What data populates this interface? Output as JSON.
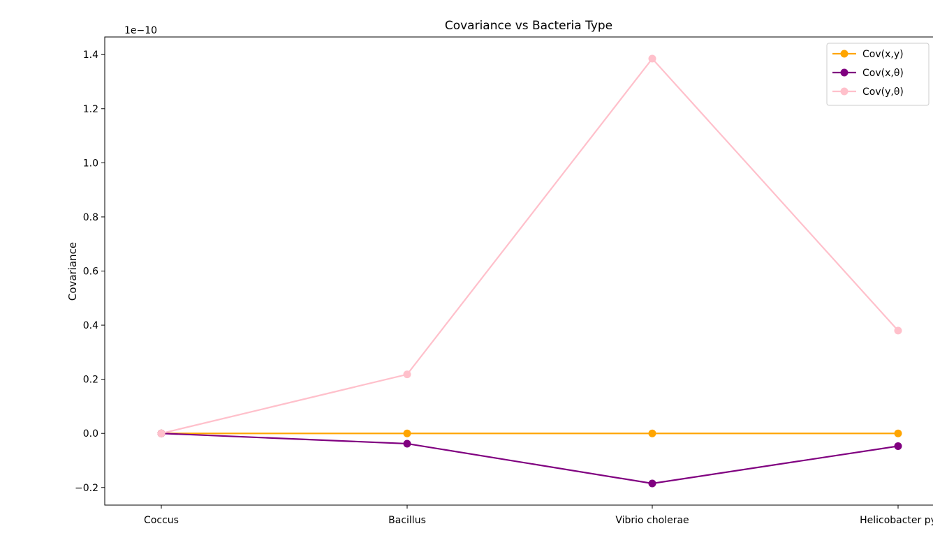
{
  "chart_data": {
    "type": "line",
    "title": "Covariance vs Bacteria Type",
    "xlabel": "",
    "ylabel": "Covariance",
    "y_multiplier_label": "1e−10",
    "y_scale_factor": 1e-10,
    "categories": [
      "Coccus",
      "Bacillus",
      "Vibrio cholerae",
      "Helicobacter py"
    ],
    "yticks": [
      "−0.2",
      "0.0",
      "0.2",
      "0.4",
      "0.6",
      "0.8",
      "1.0",
      "1.2",
      "1.4"
    ],
    "ylim": [
      -0.265,
      1.465
    ],
    "grid": false,
    "legend_position": "top-right",
    "series": [
      {
        "name": "Cov(x,y)",
        "color": "#FFA500",
        "values": [
          0.0,
          0.0,
          0.0,
          0.0
        ]
      },
      {
        "name": "Cov(x,θ)",
        "color": "#800080",
        "values": [
          0.0,
          -0.038,
          -0.185,
          -0.047
        ]
      },
      {
        "name": "Cov(y,θ)",
        "color": "#FFC0CB",
        "values": [
          0.0,
          0.218,
          1.385,
          0.38
        ]
      }
    ]
  }
}
